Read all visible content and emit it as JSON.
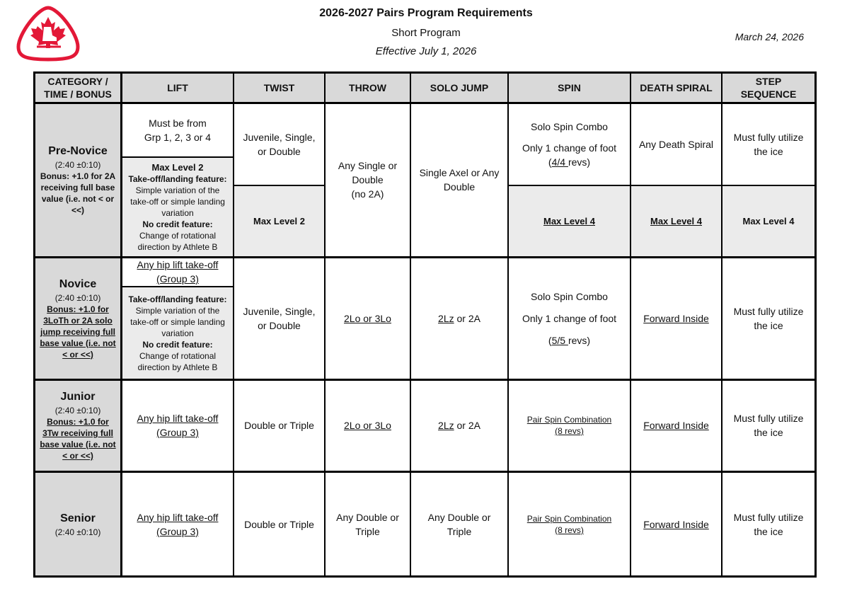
{
  "header": {
    "title": "2026-2027 Pairs Program Requirements",
    "subtitle": "Short Program",
    "effective": "Effective July 1, 2026",
    "date": "March 24, 2026",
    "logo": "skate-canada-maple-leaf-skate-logo"
  },
  "columns": [
    "CATEGORY / TIME / BONUS",
    "LIFT",
    "TWIST",
    "THROW",
    "SOLO JUMP",
    "SPIN",
    "DEATH SPIRAL",
    "STEP SEQUENCE"
  ],
  "prenovice": {
    "name": "Pre-Novice",
    "time": "(2:40 ±0:10)",
    "bonus": "Bonus: +1.0 for 2A receiving full base value (i.e. not < or <<)",
    "lift_1": "Must be from",
    "lift_2": "Grp 1, 2, 3 or 4",
    "lift_max": "Max Level 2",
    "lift_feat_label": "Take-off/landing feature:",
    "lift_feat": "Simple variation of the take-off or simple landing variation",
    "lift_nc_label": "No credit feature:",
    "lift_nc": "Change of rotational direction by Athlete B",
    "twist": "Juvenile, Single, or Double",
    "twist_max": "Max Level 2",
    "throw_1": "Any Single or Double",
    "throw_2": "(no 2A)",
    "solo": "Single Axel or Any Double",
    "spin_1": "Solo Spin Combo",
    "spin_2": "Only 1 change of foot",
    "spin_3a": "(",
    "spin_3b": "4/4 ",
    "spin_3c": "revs)",
    "spin_max": "Max Level 4",
    "ds": "Any Death Spiral",
    "ds_max": "Max Level 4",
    "step": "Must fully utilize the ice",
    "step_max": "Max Level 4"
  },
  "novice": {
    "name": "Novice",
    "time": "(2:40 ±0:10)",
    "bonus": "Bonus: +1.0 for 3LoTh or 2A solo jump receiving full base value (i.e. not < or <<)",
    "lift": "Any hip lift take-off (Group 3)",
    "lift_feat_label": "Take-off/landing feature:",
    "lift_feat": "Simple variation of the take-off or simple landing variation",
    "lift_nc_label": "No credit feature:",
    "lift_nc": "Change of rotational direction by Athlete B",
    "twist": "Juvenile, Single, or Double",
    "throw": "2Lo or 3Lo",
    "solo_a": "2Lz",
    "solo_b": " or 2A",
    "spin_1": "Solo Spin Combo",
    "spin_2": "Only 1 change of foot",
    "spin_3a": "(",
    "spin_3b": "5/5 ",
    "spin_3c": "revs)",
    "ds": "Forward Inside",
    "step": "Must fully utilize the ice"
  },
  "junior": {
    "name": "Junior",
    "time": "(2:40 ±0:10)",
    "bonus": "Bonus: +1.0 for 3Tw receiving full base value (i.e. not < or <<)",
    "lift": "Any hip lift take-off (Group 3)",
    "twist": "Double or Triple",
    "throw": "2Lo or 3Lo",
    "solo_a": "2Lz",
    "solo_b": " or 2A",
    "spin_1": "Pair Spin Combination",
    "spin_2": "(8 revs)",
    "ds": "Forward Inside",
    "step": "Must fully utilize the ice"
  },
  "senior": {
    "name": "Senior",
    "time": "(2:40 ±0:10)",
    "lift": "Any hip lift take-off (Group 3)",
    "twist": "Double or Triple",
    "throw": "Any Double or Triple",
    "solo": "Any Double or Triple",
    "spin_1": "Pair Spin Combination",
    "spin_2": "(8 revs)",
    "ds": "Forward Inside",
    "step": "Must fully utilize the ice"
  }
}
